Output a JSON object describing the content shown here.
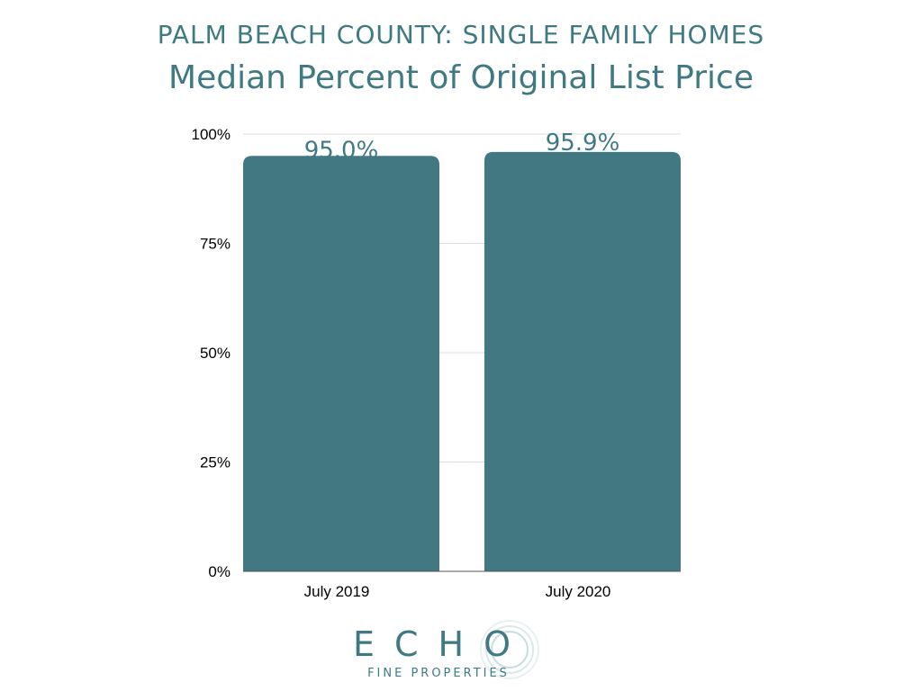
{
  "header": {
    "title": "PALM BEACH COUNTY: SINGLE FAMILY HOMES",
    "subtitle": "Median Percent of Original List Price"
  },
  "chart_data": {
    "type": "bar",
    "categories": [
      "July 2019",
      "July 2020"
    ],
    "values": [
      95.0,
      95.9
    ],
    "data_labels": [
      "95.0%",
      "95.9%"
    ],
    "title": "PALM BEACH COUNTY: SINGLE FAMILY HOMES",
    "subtitle": "Median Percent of Original List Price",
    "xlabel": "",
    "ylabel": "",
    "ylim": [
      0,
      100
    ],
    "yticks": [
      0,
      25,
      50,
      75,
      100
    ],
    "ytick_labels": [
      "0%",
      "25%",
      "50%",
      "75%",
      "100%"
    ],
    "grid": true,
    "legend": "none",
    "colors": {
      "bar": "#427882",
      "title": "#3f7a83",
      "grid": "#dddddd",
      "axis_text": "#000000"
    }
  },
  "logo": {
    "name": "ECHO",
    "tagline": "FINE PROPERTIES"
  }
}
